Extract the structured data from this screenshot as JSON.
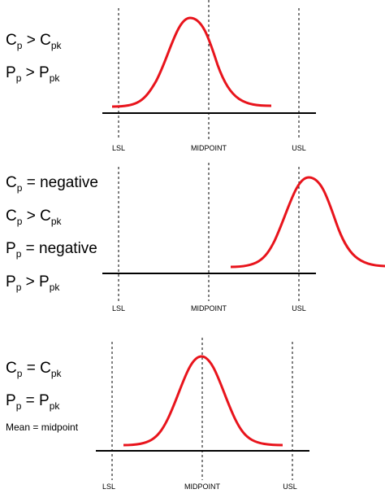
{
  "axis_labels": {
    "lsl": "LSL",
    "midpoint": "MIDPOINT",
    "usl": "USL"
  },
  "panels": [
    {
      "statements": [
        {
          "a": "C",
          "a_sub": "p",
          "op": " > ",
          "b": "C",
          "b_sub": "pk"
        },
        {
          "a": "P",
          "a_sub": "p",
          "op": " > ",
          "b": "P",
          "b_sub": "pk"
        }
      ],
      "note": ""
    },
    {
      "statements": [
        {
          "a": "C",
          "a_sub": "p",
          "op": " = ",
          "b": "negative",
          "b_sub": ""
        },
        {
          "a": "C",
          "a_sub": "p",
          "op": " > ",
          "b": "C",
          "b_sub": "pk"
        },
        {
          "a": "P",
          "a_sub": "p",
          "op": " = ",
          "b": "negative",
          "b_sub": ""
        },
        {
          "a": "P",
          "a_sub": "p",
          "op": " > ",
          "b": "P",
          "b_sub": "pk"
        }
      ],
      "note": ""
    },
    {
      "statements": [
        {
          "a": "C",
          "a_sub": "p",
          "op": " = ",
          "b": "C",
          "b_sub": "pk"
        },
        {
          "a": "P",
          "a_sub": "p",
          "op": " = ",
          "b": "P",
          "b_sub": "pk"
        }
      ],
      "note": "Mean = midpoint"
    }
  ],
  "colors": {
    "curve": "#e8141c",
    "axis": "#000000",
    "guide": "#000000"
  }
}
